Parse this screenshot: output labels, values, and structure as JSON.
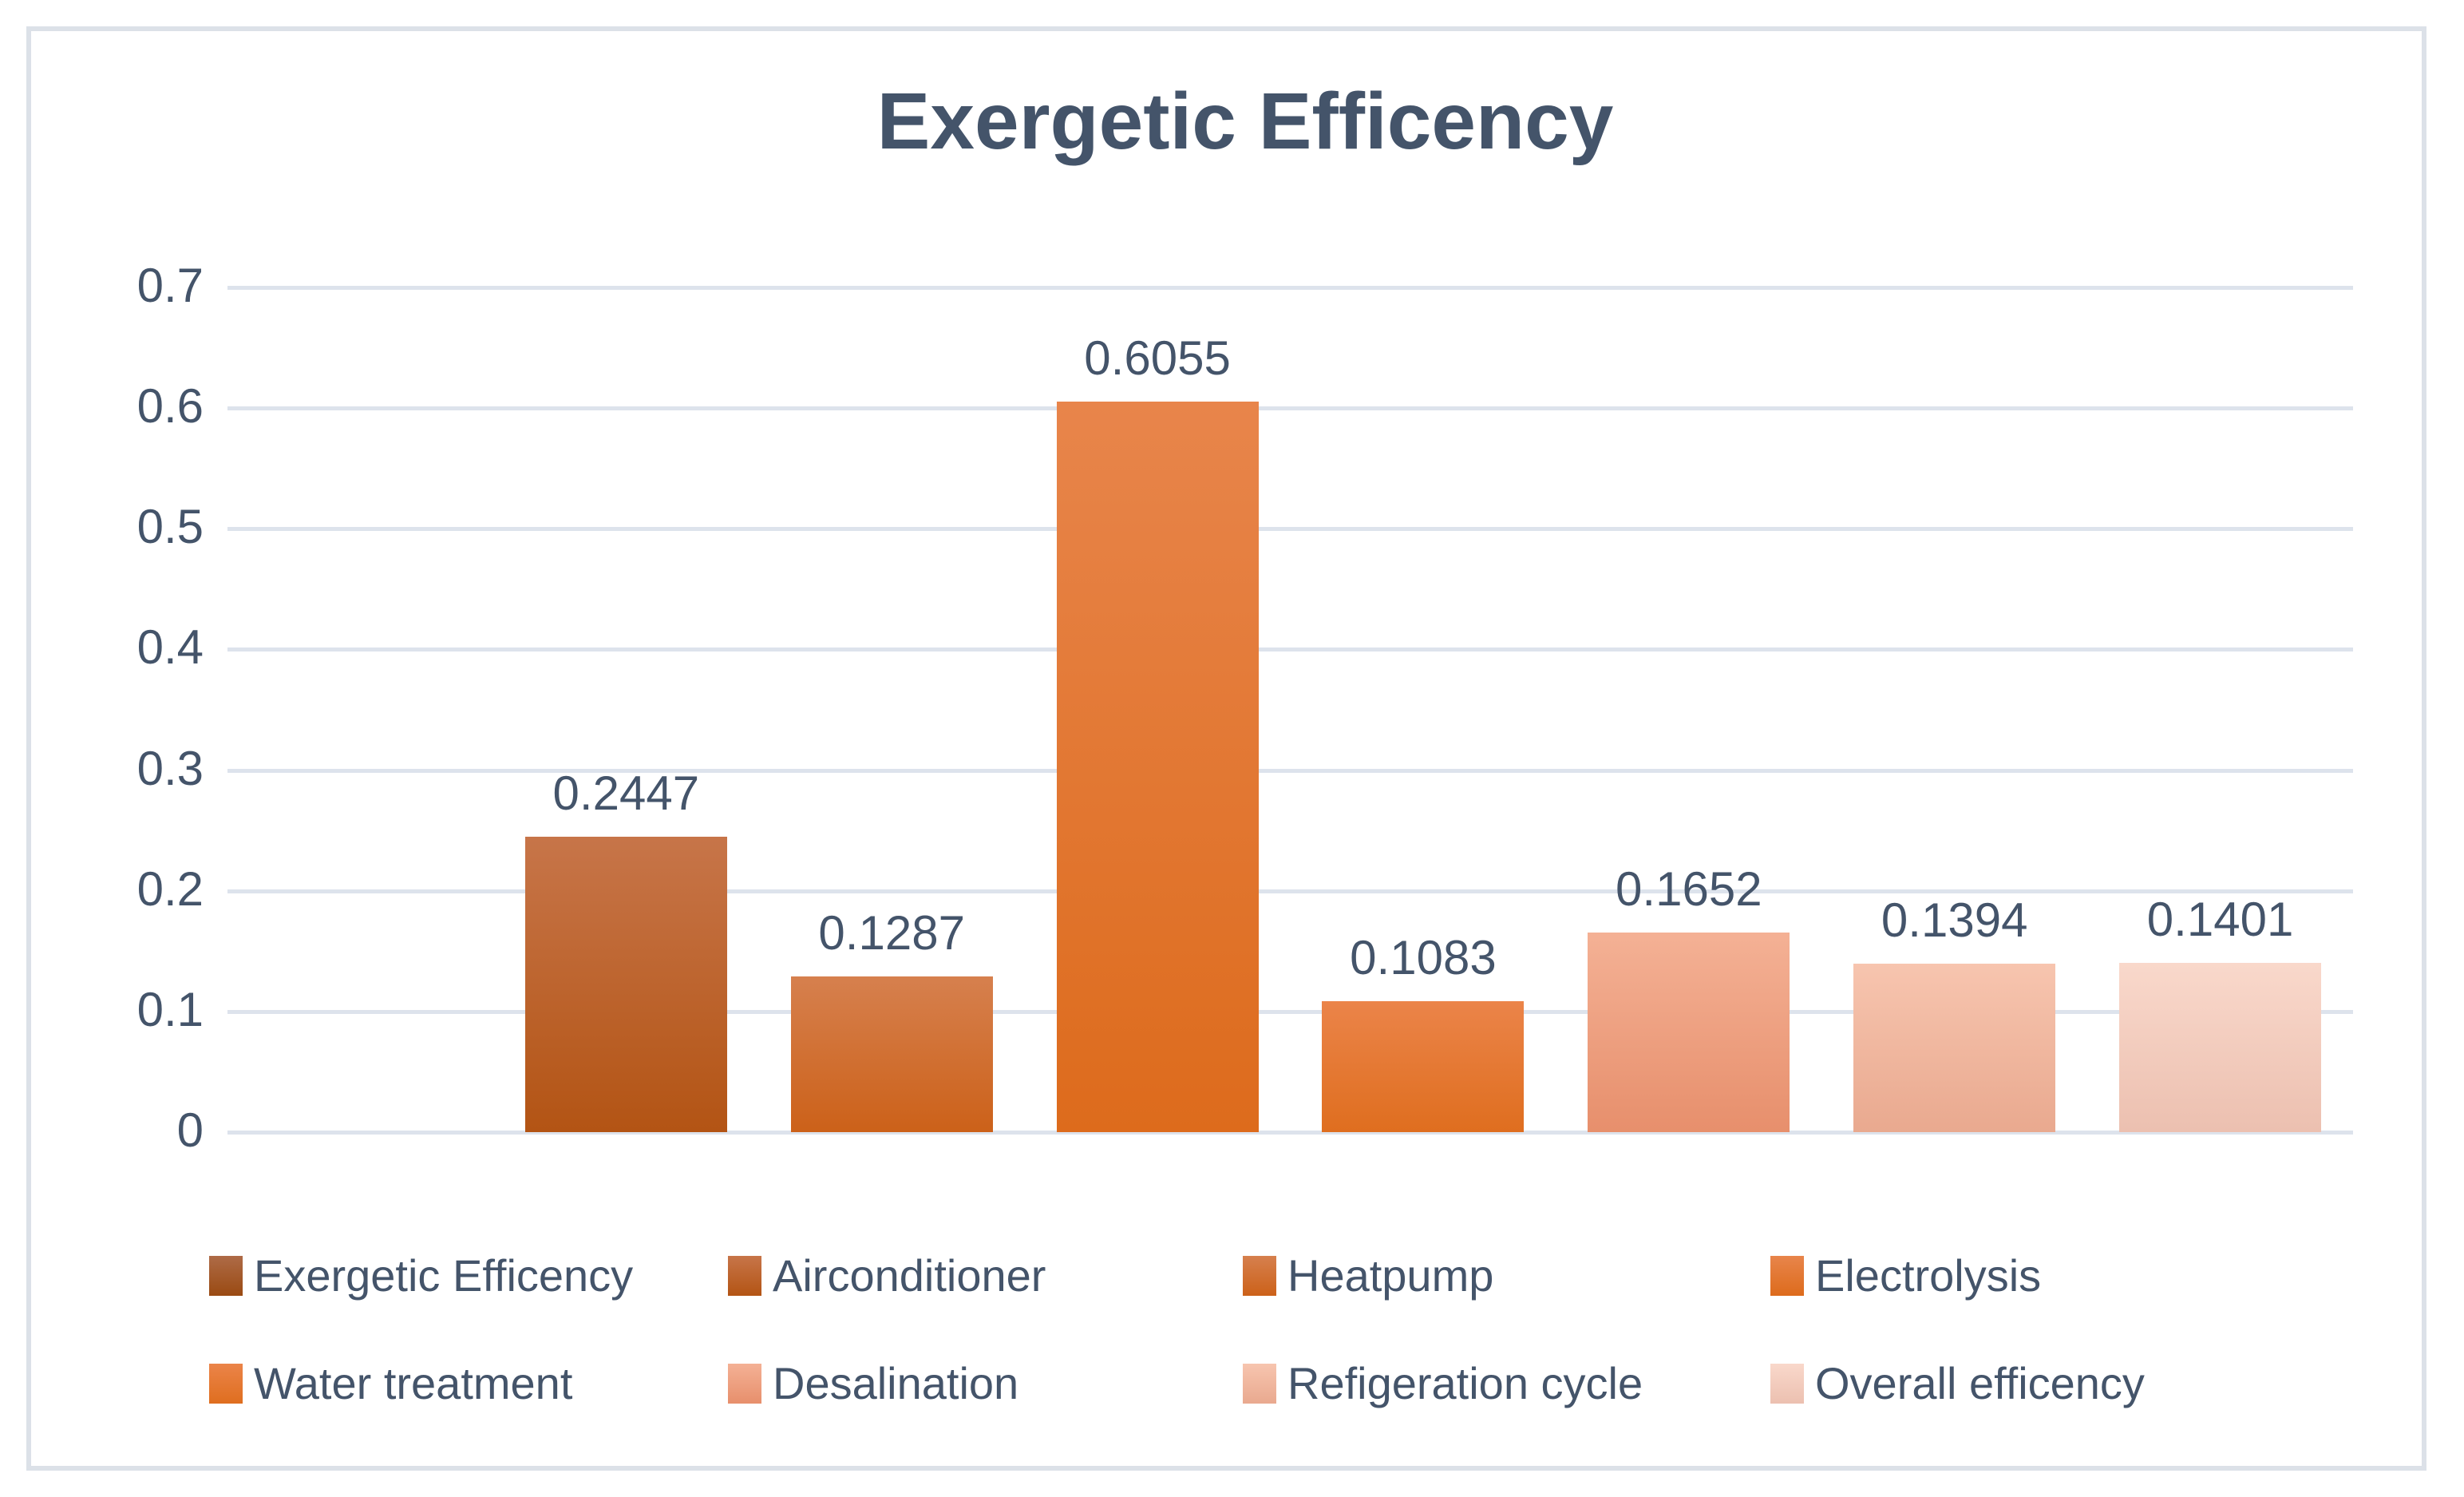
{
  "title": "Exergetic Efficency",
  "colors": {
    "text": "#44546a",
    "gridline": "#dde3ec",
    "frame_border": "#dce1e8",
    "background": "#ffffff"
  },
  "chart_data": {
    "type": "bar",
    "title": "Exergetic Efficency",
    "categories": [
      "Exergetic Efficency",
      "Airconditioner",
      "Heatpump",
      "Electrolysis",
      "Water treatment",
      "Desalination",
      "Refigeration cycle",
      "Overall efficency"
    ],
    "values": [
      null,
      0.2447,
      0.1287,
      0.6055,
      0.1083,
      0.1652,
      0.1394,
      0.1401
    ],
    "data_labels": [
      "",
      "0.2447",
      "0.1287",
      "0.6055",
      "0.1083",
      "0.1652",
      "0.1394",
      "0.1401"
    ],
    "ylim": [
      0,
      0.7
    ],
    "ytick_step": 0.1,
    "yticks_top_to_bottom": [
      "0.7",
      "0.6",
      "0.5",
      "0.4",
      "0.3",
      "0.2",
      "0.1",
      "0"
    ],
    "grid": true,
    "legend_position": "bottom",
    "legend": [
      {
        "label": "Exergetic Efficency",
        "color_top": "#ae6b47",
        "color_bottom": "#9a4a12"
      },
      {
        "label": "Airconditioner",
        "color_top": "#c77549",
        "color_bottom": "#b35414"
      },
      {
        "label": "Heatpump",
        "color_top": "#d6804e",
        "color_bottom": "#cc6119"
      },
      {
        "label": "Electrolysis",
        "color_top": "#e8854b",
        "color_bottom": "#dd6b1c"
      },
      {
        "label": "Water treatment",
        "color_top": "#eb8449",
        "color_bottom": "#df6e1f"
      },
      {
        "label": "Desalination",
        "color_top": "#f4b195",
        "color_bottom": "#e78f6c"
      },
      {
        "label": "Refigeration cycle",
        "color_top": "#f7c5af",
        "color_bottom": "#e9a98f"
      },
      {
        "label": "Overall efficency",
        "color_top": "#f9d8cb",
        "color_bottom": "#ecc0b0"
      }
    ]
  }
}
